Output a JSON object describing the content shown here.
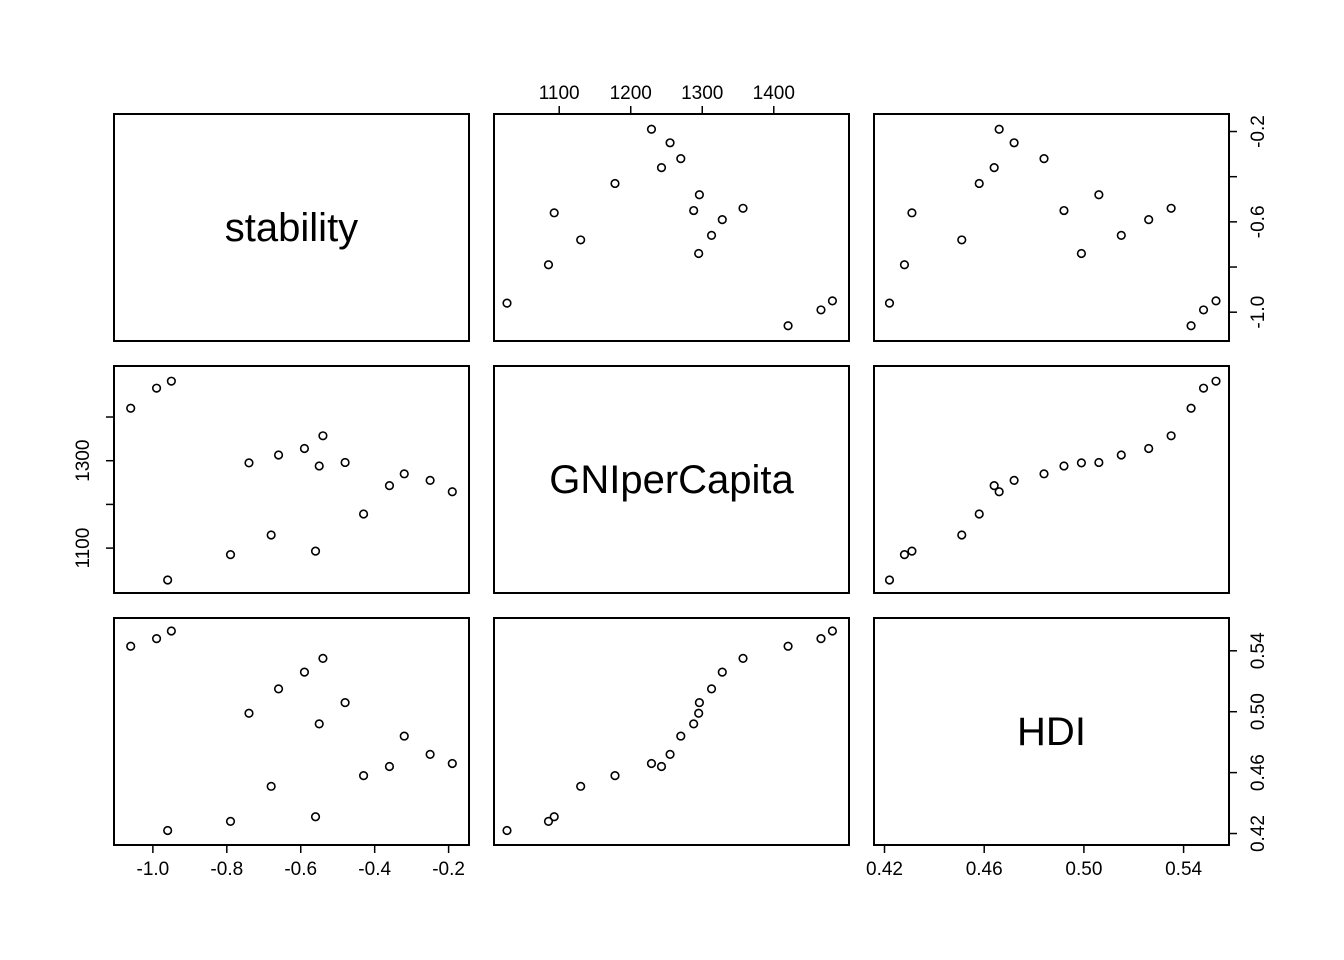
{
  "chart_data": {
    "type": "scatter",
    "subtype": "pairs-matrix",
    "variables": [
      "stability",
      "GNIperCapita",
      "HDI"
    ],
    "ranges": {
      "stability": [
        -1.07,
        -0.18
      ],
      "GNIperCapita": [
        1027,
        1487
      ],
      "HDI": [
        0.421,
        0.553
      ]
    },
    "ticks": {
      "stability": [
        -1.0,
        -0.8,
        -0.6,
        -0.4,
        -0.2
      ],
      "GNIperCapita": [
        1100,
        1200,
        1300,
        1400
      ],
      "HDI": [
        0.42,
        0.46,
        0.5,
        0.54
      ]
    },
    "tick_labels": {
      "stability_bottom": [
        "-1.0",
        "-0.8",
        "-0.6",
        "-0.4",
        "-0.2"
      ],
      "stability_right": [
        "-0.2",
        "-0.6",
        "-1.0"
      ],
      "GNIperCapita_top": [
        "1100",
        "1200",
        "1300",
        "1400"
      ],
      "GNIperCapita_left": [
        "1100",
        "1300"
      ],
      "HDI_bottom": [
        "0.42",
        "0.46",
        "0.50",
        "0.54"
      ],
      "HDI_right": [
        "0.42",
        "0.46",
        "0.50",
        "0.54"
      ]
    },
    "points": [
      {
        "stability": -1.06,
        "GNIperCapita": 1420,
        "HDI": 0.543
      },
      {
        "stability": -0.99,
        "GNIperCapita": 1466,
        "HDI": 0.548
      },
      {
        "stability": -0.95,
        "GNIperCapita": 1482,
        "HDI": 0.553
      },
      {
        "stability": -0.96,
        "GNIperCapita": 1027,
        "HDI": 0.422
      },
      {
        "stability": -0.79,
        "GNIperCapita": 1085,
        "HDI": 0.428
      },
      {
        "stability": -0.56,
        "GNIperCapita": 1093,
        "HDI": 0.431
      },
      {
        "stability": -0.68,
        "GNIperCapita": 1130,
        "HDI": 0.451
      },
      {
        "stability": -0.43,
        "GNIperCapita": 1178,
        "HDI": 0.458
      },
      {
        "stability": -0.19,
        "GNIperCapita": 1229,
        "HDI": 0.466
      },
      {
        "stability": -0.36,
        "GNIperCapita": 1243,
        "HDI": 0.464
      },
      {
        "stability": -0.25,
        "GNIperCapita": 1255,
        "HDI": 0.472
      },
      {
        "stability": -0.32,
        "GNIperCapita": 1270,
        "HDI": 0.484
      },
      {
        "stability": -0.55,
        "GNIperCapita": 1288,
        "HDI": 0.492
      },
      {
        "stability": -0.74,
        "GNIperCapita": 1295,
        "HDI": 0.499
      },
      {
        "stability": -0.48,
        "GNIperCapita": 1296,
        "HDI": 0.506
      },
      {
        "stability": -0.66,
        "GNIperCapita": 1313,
        "HDI": 0.515
      },
      {
        "stability": -0.59,
        "GNIperCapita": 1328,
        "HDI": 0.526
      },
      {
        "stability": -0.54,
        "GNIperCapita": 1357,
        "HDI": 0.535
      }
    ],
    "grid": false,
    "legend": "none"
  }
}
